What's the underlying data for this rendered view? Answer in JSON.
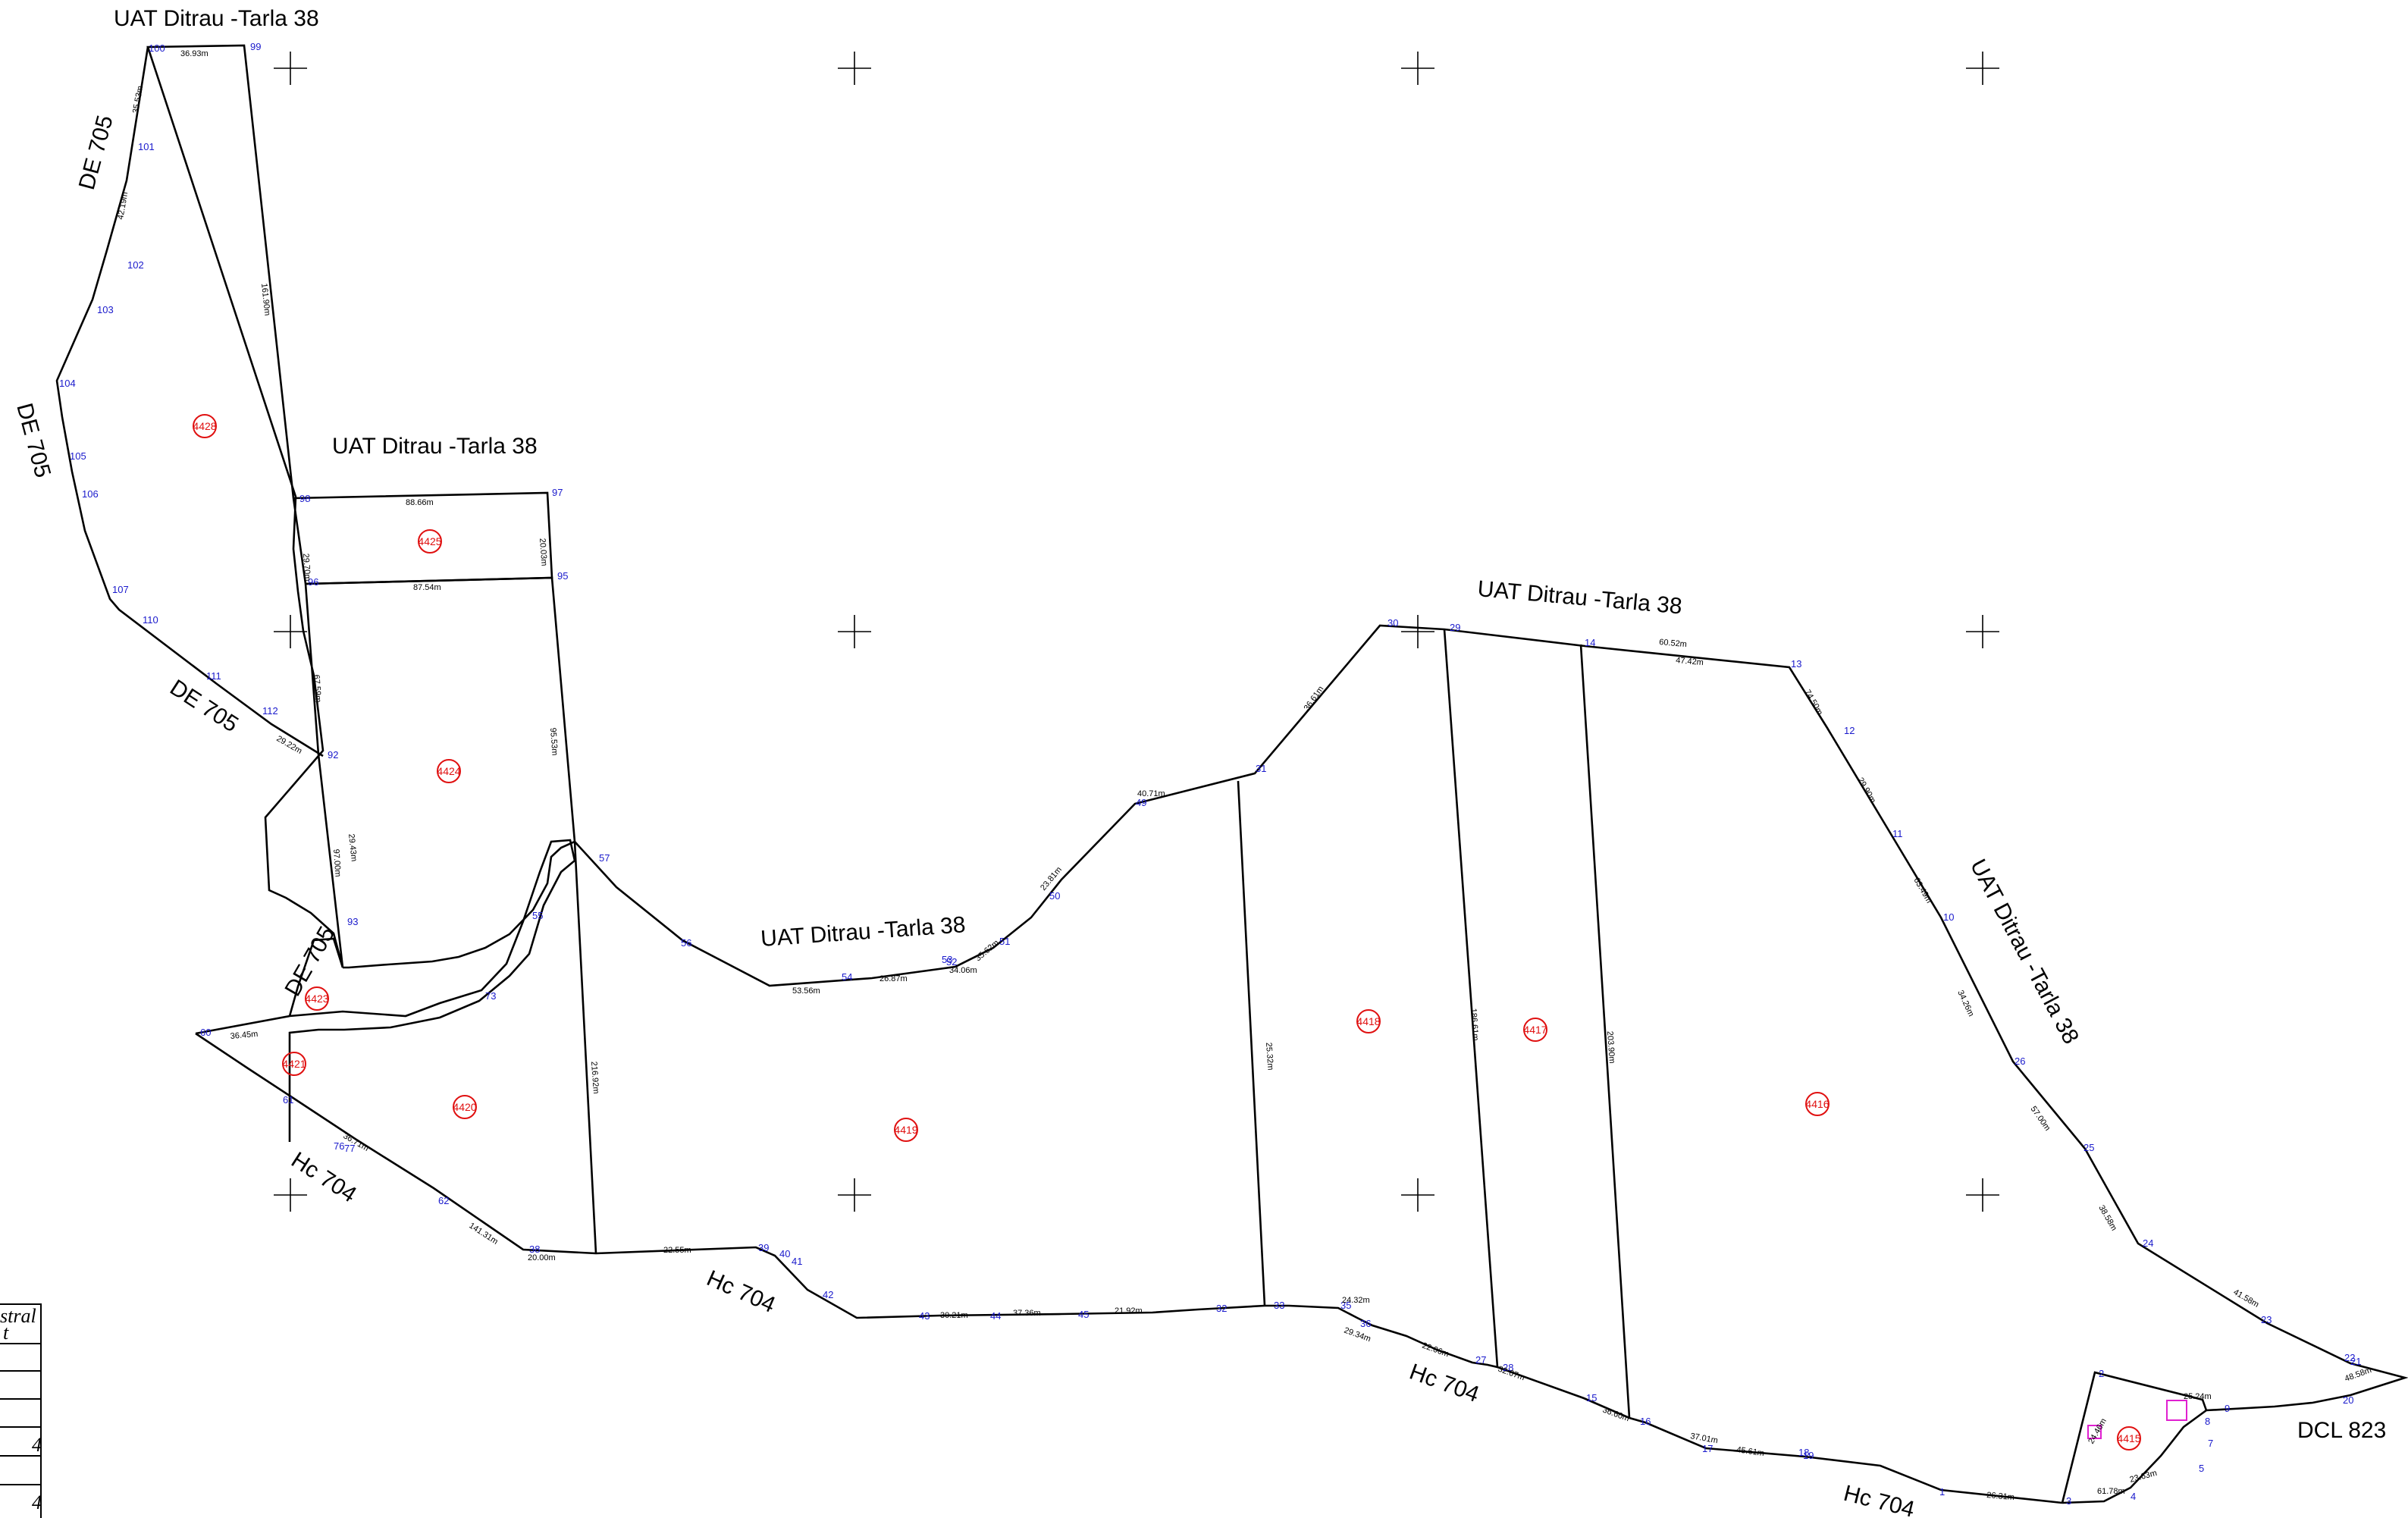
{
  "map": {
    "area_labels": [
      "UAT Ditrau -Tarla 38",
      "UAT Ditrau -Tarla 38",
      "UAT Ditrau -Tarla 38",
      "UAT Ditrau -Tarla 38",
      "UAT Ditrau -Tarla 38",
      "DE 705",
      "DE 705",
      "DE 705",
      "DE 705",
      "Hc 704",
      "Hc 704",
      "Hc 704",
      "Hc 704",
      "DCL 823"
    ],
    "parcel_ids": [
      "4428",
      "4425",
      "4424",
      "4423",
      "4421",
      "4420",
      "4419",
      "4418",
      "4417",
      "4416",
      "4415"
    ],
    "point_numbers": [
      "100",
      "99",
      "101",
      "102",
      "103",
      "104",
      "105",
      "106",
      "107",
      "110",
      "111",
      "112",
      "98",
      "97",
      "96",
      "95",
      "92",
      "93",
      "57",
      "56",
      "55",
      "54",
      "53",
      "52",
      "51",
      "50",
      "49",
      "31",
      "30",
      "29",
      "14",
      "13",
      "12",
      "11",
      "10",
      "26",
      "25",
      "24",
      "23",
      "22",
      "21",
      "20",
      "9",
      "8",
      "7",
      "5",
      "4",
      "3",
      "2",
      "1",
      "19",
      "18",
      "17",
      "16",
      "15",
      "28",
      "27",
      "36",
      "35",
      "33",
      "32",
      "45",
      "44",
      "43",
      "42",
      "41",
      "40",
      "39",
      "38",
      "62",
      "61",
      "60",
      "77",
      "76",
      "73",
      "58",
      "59"
    ],
    "distances": [
      "36.93m",
      "35.53m",
      "42.19m",
      "161.90m",
      "88.66m",
      "20.03m",
      "87.54m",
      "95.53m",
      "97.00m",
      "67.59m",
      "29.70m",
      "29.22m",
      "29.43m",
      "20.00m",
      "22.55m",
      "53.56m",
      "26.87m",
      "34.06m",
      "35.62m",
      "23.81m",
      "40.71m",
      "36.61m",
      "60.52m",
      "47.42m",
      "74.50m",
      "29.90m",
      "63.49m",
      "34.26m",
      "57.00m",
      "38.58m",
      "41.58m",
      "48.58m",
      "25.24m",
      "24.46m",
      "61.78m",
      "23.63m",
      "26.31m",
      "45.61m",
      "37.01m",
      "36.60m",
      "22.06m",
      "29.34m",
      "24.32m",
      "21.92m",
      "37.36m",
      "30.21m",
      "25.32m",
      "186.61m",
      "203.90m",
      "216.92m",
      "141.31m",
      "36.71m",
      "36.45m",
      "32.67m",
      "27.83m"
    ],
    "legend_fragments": [
      "stral",
      "t",
      "4",
      "4"
    ]
  }
}
